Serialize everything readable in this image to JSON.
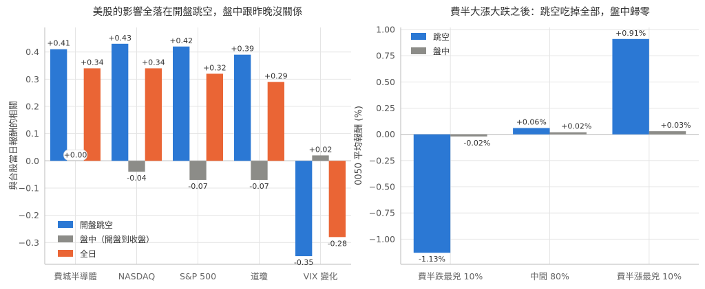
{
  "chart_data": [
    {
      "type": "bar",
      "title": "美股的影響全落在開盤跳空，盤中跟昨晚沒關係",
      "xlabel": "",
      "ylabel": "與台股當日報酬的相關",
      "categories": [
        "費城半導體",
        "NASDAQ",
        "S&P 500",
        "道瓊",
        "VIX 變化"
      ],
      "ylim": [
        -0.38,
        0.49
      ],
      "yticks": [
        "0.4",
        "0.3",
        "0.2",
        "0.1",
        "0.0",
        "−0.1",
        "−0.2",
        "−0.3"
      ],
      "ytick_values": [
        0.4,
        0.3,
        0.2,
        0.1,
        0.0,
        -0.1,
        -0.2,
        -0.3
      ],
      "grid": true,
      "legend_position": "lower-left",
      "series": [
        {
          "name": "開盤跳空",
          "color": "#2b78d4",
          "values": [
            0.41,
            0.43,
            0.42,
            0.39,
            -0.35
          ],
          "labels": [
            "+0.41",
            "+0.43",
            "+0.42",
            "+0.39",
            "-0.35"
          ]
        },
        {
          "name": "盤中（開盤到收盤）",
          "color": "#8c8c88",
          "values": [
            0.0,
            -0.04,
            -0.07,
            -0.07,
            0.02
          ],
          "labels": [
            "+0.00",
            "-0.04",
            "-0.07",
            "-0.07",
            "+0.02"
          ]
        },
        {
          "name": "全日",
          "color": "#ea6535",
          "values": [
            0.34,
            0.34,
            0.32,
            0.29,
            -0.28
          ],
          "labels": [
            "+0.34",
            "+0.34",
            "+0.32",
            "+0.29",
            "-0.28"
          ]
        }
      ]
    },
    {
      "type": "bar",
      "title": "費半大漲大跌之後：跳空吃掉全部，盤中歸零",
      "xlabel": "",
      "ylabel": "0050 平均報酬 (%)",
      "categories": [
        "費半跌最兇 10%",
        "中間 80%",
        "費半漲最兇 10%"
      ],
      "ylim": [
        -1.24,
        1.02
      ],
      "yticks": [
        "1.00",
        "0.75",
        "0.50",
        "0.25",
        "0.00",
        "−0.25",
        "−0.50",
        "−0.75",
        "−1.00"
      ],
      "ytick_values": [
        1.0,
        0.75,
        0.5,
        0.25,
        0.0,
        -0.25,
        -0.5,
        -0.75,
        -1.0
      ],
      "grid": true,
      "legend_position": "upper-left",
      "series": [
        {
          "name": "跳空",
          "color": "#2b78d4",
          "values": [
            -1.13,
            0.06,
            0.91
          ],
          "labels": [
            "-1.13%",
            "+0.06%",
            "+0.91%"
          ]
        },
        {
          "name": "盤中",
          "color": "#8c8c88",
          "values": [
            -0.02,
            0.02,
            0.03
          ],
          "labels": [
            "-0.02%",
            "+0.02%",
            "+0.03%"
          ]
        }
      ]
    }
  ]
}
